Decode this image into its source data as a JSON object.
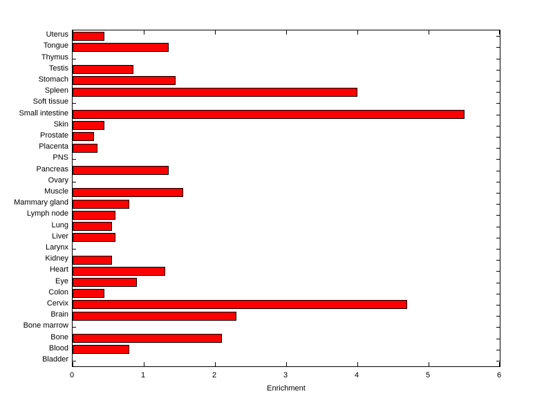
{
  "chart_data": {
    "type": "bar",
    "orientation": "horizontal",
    "title": "",
    "xlabel": "Enrichment",
    "ylabel": "",
    "xlim": [
      0,
      6
    ],
    "x_ticks": [
      0,
      1,
      2,
      3,
      4,
      5,
      6
    ],
    "grid": false,
    "legend": "none",
    "bar_fill_color": "#ff0000",
    "bar_edge_color": "#000000",
    "categories_top_to_bottom": [
      "Uterus",
      "Tongue",
      "Thymus",
      "Testis",
      "Stomach",
      "Spleen",
      "Soft tissue",
      "Small intestine",
      "Skin",
      "Prostate",
      "Placenta",
      "PNS",
      "Pancreas",
      "Ovary",
      "Muscle",
      "Mammary gland",
      "Lymph node",
      "Lung",
      "Liver",
      "Larynx",
      "Kidney",
      "Heart",
      "Eye",
      "Colon",
      "Cervix",
      "Brain",
      "Bone marrow",
      "Bone",
      "Blood",
      "Bladder"
    ],
    "values": [
      0.45,
      1.35,
      0,
      0.85,
      1.45,
      4.0,
      0,
      5.5,
      0.45,
      0.3,
      0.35,
      0,
      1.35,
      0,
      1.55,
      0.8,
      0.6,
      0.55,
      0.6,
      0,
      0.55,
      1.3,
      0.9,
      0.45,
      4.7,
      2.3,
      0,
      2.1,
      0.8,
      0
    ]
  }
}
